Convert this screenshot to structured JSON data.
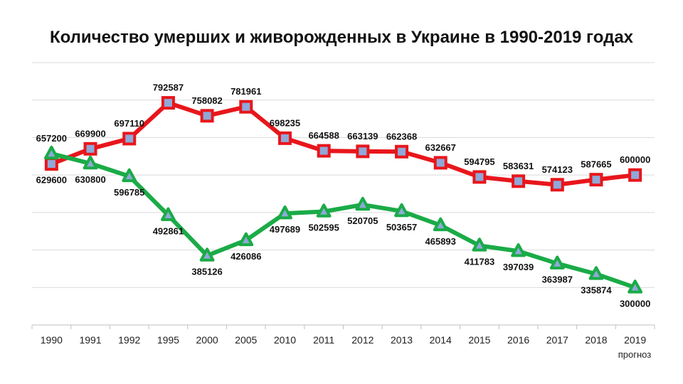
{
  "chart_data": {
    "type": "line",
    "title": "Количество умерших и живорожденных в Украине в 1990-2019 годах",
    "categories": [
      "1990",
      "1991",
      "1992",
      "1995",
      "2000",
      "2005",
      "2010",
      "2011",
      "2012",
      "2013",
      "2014",
      "2015",
      "2016",
      "2017",
      "2018",
      "2019"
    ],
    "x_note": "прогноз",
    "ylim": [
      200000,
      900000
    ],
    "grid": true,
    "legend": "none",
    "series": [
      {
        "color": "#e8161b",
        "marker": "square",
        "marker_fill": "#8fa9d9",
        "values": [
          629600,
          669900,
          697110,
          792587,
          758082,
          781961,
          698235,
          664588,
          663139,
          662368,
          632667,
          594795,
          583631,
          574123,
          587665,
          600000
        ],
        "labels": [
          "629600",
          "669900",
          "697110",
          "792587",
          "758082",
          "781961",
          "698235",
          "664588",
          "663139",
          "662368",
          "632667",
          "594795",
          "583631",
          "574123",
          "587665",
          "600000"
        ]
      },
      {
        "color": "#1aab47",
        "marker": "triangle",
        "marker_fill": "#8fa9d9",
        "values": [
          657200,
          630800,
          596785,
          492861,
          385126,
          426086,
          497689,
          502595,
          520705,
          503657,
          465893,
          411783,
          397039,
          363987,
          335874,
          300000
        ],
        "labels": [
          "657200",
          "630800",
          "596785",
          "492861",
          "385126",
          "426086",
          "497689",
          "502595",
          "520705",
          "503657",
          "465893",
          "411783",
          "397039",
          "363987",
          "335874",
          "300000"
        ]
      }
    ]
  }
}
